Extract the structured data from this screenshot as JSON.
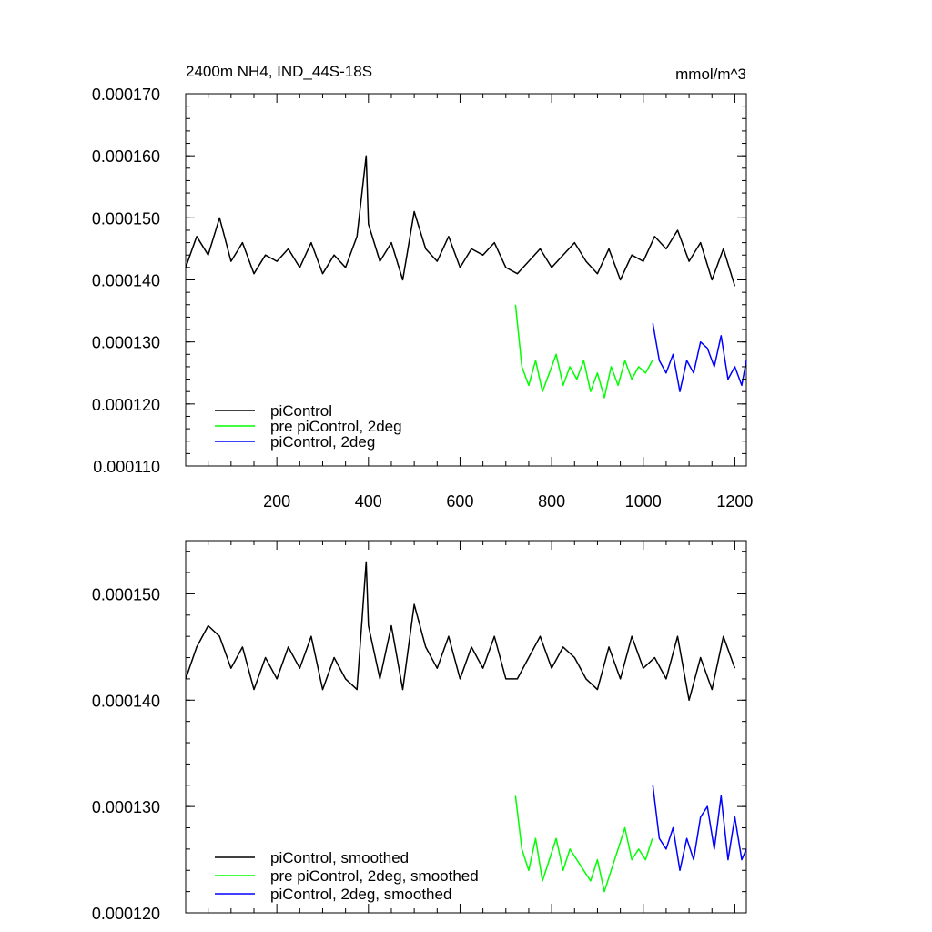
{
  "chart_data": [
    {
      "type": "line",
      "title": "2400m NH4, IND_44S-18S",
      "units": "mmol/m^3",
      "xlim": [
        1,
        1225
      ],
      "ylim": [
        0.00011,
        0.00017
      ],
      "x_ticks": [
        200,
        400,
        600,
        800,
        1000,
        1200
      ],
      "y_ticks": [
        "0.000110",
        "0.000120",
        "0.000130",
        "0.000140",
        "0.000150",
        "0.000160",
        "0.000170"
      ],
      "legend_position": "bottom-left",
      "series": [
        {
          "name": "piControl",
          "color": "#000000",
          "x": [
            1,
            25,
            50,
            75,
            100,
            125,
            150,
            175,
            200,
            225,
            250,
            275,
            300,
            325,
            350,
            375,
            395,
            400,
            425,
            450,
            475,
            500,
            525,
            550,
            575,
            600,
            625,
            650,
            675,
            700,
            725,
            750,
            775,
            800,
            825,
            850,
            875,
            900,
            925,
            950,
            975,
            1000,
            1025,
            1050,
            1075,
            1100,
            1125,
            1150,
            1175,
            1200
          ],
          "y": [
            0.000142,
            0.000147,
            0.000144,
            0.00015,
            0.000143,
            0.000146,
            0.000141,
            0.000144,
            0.000143,
            0.000145,
            0.000142,
            0.000146,
            0.000141,
            0.000144,
            0.000142,
            0.000147,
            0.00016,
            0.000149,
            0.000143,
            0.000146,
            0.00014,
            0.000151,
            0.000145,
            0.000143,
            0.000147,
            0.000142,
            0.000145,
            0.000144,
            0.000146,
            0.000142,
            0.000141,
            0.000143,
            0.000145,
            0.000142,
            0.000144,
            0.000146,
            0.000143,
            0.000141,
            0.000145,
            0.00014,
            0.000144,
            0.000143,
            0.000147,
            0.000145,
            0.000148,
            0.000143,
            0.000146,
            0.00014,
            0.000145,
            0.000139
          ]
        },
        {
          "name": "pre piControl, 2deg",
          "color": "#00ff00",
          "x": [
            721,
            735,
            750,
            765,
            780,
            795,
            810,
            825,
            840,
            855,
            870,
            885,
            900,
            915,
            930,
            945,
            960,
            975,
            990,
            1005,
            1020
          ],
          "y": [
            0.000136,
            0.000126,
            0.000123,
            0.000127,
            0.000122,
            0.000125,
            0.000128,
            0.000123,
            0.000126,
            0.000124,
            0.000127,
            0.000122,
            0.000125,
            0.000121,
            0.000126,
            0.000123,
            0.000127,
            0.000124,
            0.000126,
            0.000125,
            0.000127
          ]
        },
        {
          "name": "piControl, 2deg",
          "color": "#0000ff",
          "x": [
            1021,
            1035,
            1050,
            1065,
            1080,
            1095,
            1110,
            1125,
            1140,
            1155,
            1170,
            1185,
            1200,
            1215,
            1225
          ],
          "y": [
            0.000133,
            0.000127,
            0.000125,
            0.000128,
            0.000122,
            0.000127,
            0.000125,
            0.00013,
            0.000129,
            0.000126,
            0.000131,
            0.000124,
            0.000126,
            0.000123,
            0.000127
          ]
        }
      ]
    },
    {
      "type": "line",
      "xlim": [
        1,
        1225
      ],
      "ylim": [
        0.00012,
        0.000155
      ],
      "x_ticks": [
        200,
        400,
        600,
        800,
        1000,
        1200
      ],
      "y_ticks": [
        "0.000120",
        "0.000130",
        "0.000140",
        "0.000150"
      ],
      "legend_position": "bottom-left",
      "series": [
        {
          "name": "piControl, smoothed",
          "color": "#000000",
          "x": [
            1,
            25,
            50,
            75,
            100,
            125,
            150,
            175,
            200,
            225,
            250,
            275,
            300,
            325,
            350,
            375,
            395,
            400,
            425,
            450,
            475,
            500,
            525,
            550,
            575,
            600,
            625,
            650,
            675,
            700,
            725,
            750,
            775,
            800,
            825,
            850,
            875,
            900,
            925,
            950,
            975,
            1000,
            1025,
            1050,
            1075,
            1100,
            1125,
            1150,
            1175,
            1200
          ],
          "y": [
            0.000142,
            0.000145,
            0.000147,
            0.000146,
            0.000143,
            0.000145,
            0.000141,
            0.000144,
            0.000142,
            0.000145,
            0.000143,
            0.000146,
            0.000141,
            0.000144,
            0.000142,
            0.000141,
            0.000153,
            0.000147,
            0.000142,
            0.000147,
            0.000141,
            0.000149,
            0.000145,
            0.000143,
            0.000146,
            0.000142,
            0.000145,
            0.000143,
            0.000146,
            0.000142,
            0.000142,
            0.000144,
            0.000146,
            0.000143,
            0.000145,
            0.000144,
            0.000142,
            0.000141,
            0.000145,
            0.000142,
            0.000146,
            0.000143,
            0.000144,
            0.000142,
            0.000146,
            0.00014,
            0.000144,
            0.000141,
            0.000146,
            0.000143
          ]
        },
        {
          "name": "pre piControl, 2deg, smoothed",
          "color": "#00ff00",
          "x": [
            721,
            735,
            750,
            765,
            780,
            795,
            810,
            825,
            840,
            855,
            870,
            885,
            900,
            915,
            930,
            945,
            960,
            975,
            990,
            1005,
            1020
          ],
          "y": [
            0.000131,
            0.000126,
            0.000124,
            0.000127,
            0.000123,
            0.000125,
            0.000127,
            0.000124,
            0.000126,
            0.000125,
            0.000124,
            0.000123,
            0.000125,
            0.000122,
            0.000124,
            0.000126,
            0.000128,
            0.000125,
            0.000126,
            0.000125,
            0.000127
          ]
        },
        {
          "name": "piControl, 2deg, smoothed",
          "color": "#0000ff",
          "x": [
            1021,
            1035,
            1050,
            1065,
            1080,
            1095,
            1110,
            1125,
            1140,
            1155,
            1170,
            1185,
            1200,
            1215,
            1225
          ],
          "y": [
            0.000132,
            0.000127,
            0.000126,
            0.000128,
            0.000124,
            0.000127,
            0.000125,
            0.000129,
            0.00013,
            0.000126,
            0.000131,
            0.000125,
            0.000129,
            0.000125,
            0.000126
          ]
        }
      ]
    }
  ]
}
